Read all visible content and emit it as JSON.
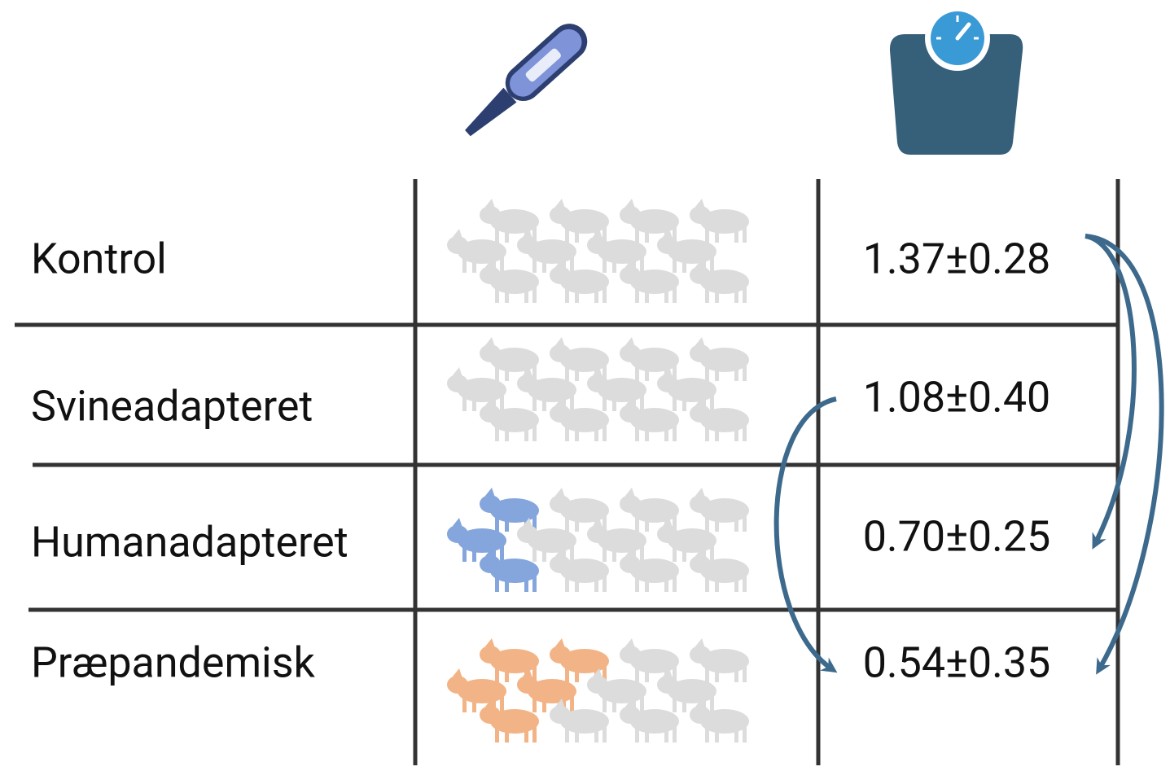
{
  "table": {
    "pigs_per_group": 12,
    "rows": [
      {
        "label": "Kontrol",
        "value": "1.37±0.28",
        "affected": 0,
        "color": "#dcdcdc"
      },
      {
        "label": "Svineadapteret",
        "value": "1.08±0.40",
        "affected": 0,
        "color": "#dcdcdc"
      },
      {
        "label": "Humanadapteret",
        "value": "0.70±0.25",
        "affected": 3,
        "color": "#84a6dc"
      },
      {
        "label": "Præpandemisk",
        "value": "0.54±0.35",
        "affected": 5,
        "color": "#f2b486"
      }
    ],
    "unaffected_color": "#dcdcdc"
  }
}
